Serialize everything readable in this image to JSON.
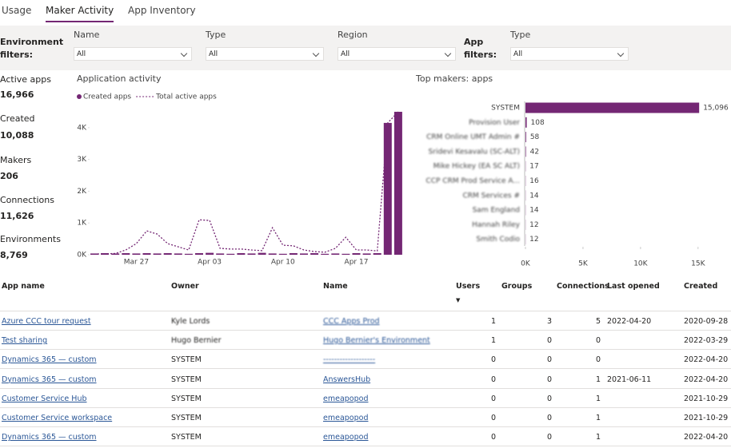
{
  "tabs": [
    "Usage",
    "Maker Activity",
    "App Inventory"
  ],
  "filters": {
    "environment_label": "Environment filters:",
    "app_label": "App filters:",
    "environment": [
      {
        "label": "Name",
        "value": "All"
      },
      {
        "label": "Type",
        "value": "All"
      },
      {
        "label": "Region",
        "value": "All"
      }
    ],
    "app": [
      {
        "label": "Type",
        "value": "All"
      }
    ]
  },
  "kpis": [
    {
      "label": "Active apps",
      "value": "16,966"
    },
    {
      "label": "Created",
      "value": "10,088"
    },
    {
      "label": "Makers",
      "value": "206"
    },
    {
      "label": "Connections",
      "value": "11,626"
    },
    {
      "label": "Environments",
      "value": "8,769"
    }
  ],
  "activity_chart": {
    "type": "bar",
    "title": "Application activity",
    "categories": [
      null,
      null,
      null,
      null,
      "Mar 27",
      null,
      null,
      null,
      null,
      null,
      null,
      "Apr 03",
      null,
      null,
      null,
      null,
      null,
      null,
      "Apr 10",
      null,
      null,
      null,
      null,
      null,
      null,
      "Apr 17",
      null,
      null,
      null,
      null
    ],
    "series": [
      {
        "name": "Created apps",
        "color": "#742774",
        "type": "bar",
        "values": [
          40,
          50,
          40,
          50,
          40,
          50,
          40,
          50,
          40,
          30,
          50,
          60,
          40,
          30,
          50,
          40,
          60,
          40,
          30,
          50,
          40,
          50,
          30,
          40,
          30,
          50,
          40,
          50,
          4150,
          4500
        ]
      },
      {
        "name": "Total active apps",
        "color": "#742774",
        "type": "line",
        "values": [
          20,
          30,
          40,
          150,
          350,
          750,
          650,
          350,
          250,
          150,
          1100,
          1080,
          200,
          180,
          180,
          150,
          130,
          850,
          300,
          280,
          150,
          100,
          80,
          200,
          550,
          150,
          150,
          120,
          4150,
          4500
        ]
      }
    ],
    "ylim": [
      0,
      4600
    ],
    "yticks": [
      {
        "value": 0,
        "label": "0K"
      },
      {
        "value": 1000,
        "label": "1K"
      },
      {
        "value": 2000,
        "label": "2K"
      },
      {
        "value": 3000,
        "label": "3K"
      },
      {
        "value": 4000,
        "label": "4K"
      }
    ]
  },
  "makers_chart": {
    "type": "bar",
    "orientation": "horizontal",
    "title": "Top makers: apps",
    "categories": [
      "SYSTEM",
      "Provision User",
      "CRM Online UMT Admin #",
      "Sridevi Kesavalu (SC-ALT)",
      "Mike Hickey (EA SC ALT)",
      "CCP CRM Prod Service A...",
      "CRM Services #",
      "Sam England",
      "Hannah Riley",
      "Smith Codio"
    ],
    "values": [
      15096,
      108,
      58,
      42,
      17,
      16,
      14,
      14,
      12,
      12
    ],
    "value_labels": [
      "15,096",
      "108",
      "58",
      "42",
      "17",
      "16",
      "14",
      "14",
      "12",
      "12"
    ],
    "color": "#742774",
    "xlim": [
      0,
      15500
    ],
    "xticks": [
      {
        "value": 0,
        "label": "0K"
      },
      {
        "value": 5000,
        "label": "5K"
      },
      {
        "value": 10000,
        "label": "10K"
      },
      {
        "value": 15000,
        "label": "15K"
      }
    ]
  },
  "table": {
    "columns": [
      "App name",
      "Owner",
      "Name",
      "Users",
      "Groups",
      "Connections",
      "Last opened",
      "Created"
    ],
    "rows": [
      [
        "Azure CCC tour request",
        "Kyle Lords",
        "CCC Apps Prod",
        1,
        3,
        5,
        "2022-04-20",
        "2020-09-28"
      ],
      [
        "Test sharing",
        "Hugo Bernier",
        "Hugo Bernier's Environment",
        1,
        0,
        0,
        null,
        "2022-03-29"
      ],
      [
        "Dynamics 365 — custom",
        "SYSTEM",
        "-------------------",
        0,
        0,
        0,
        null,
        "2022-04-20"
      ],
      [
        "Dynamics 365 — custom",
        "SYSTEM",
        "AnswersHub",
        0,
        0,
        1,
        "2021-06-11",
        "2022-04-20"
      ],
      [
        "Customer Service Hub",
        "SYSTEM",
        "emeapopod",
        0,
        0,
        1,
        null,
        "2021-10-29"
      ],
      [
        "Customer Service workspace",
        "SYSTEM",
        "emeapopod",
        0,
        0,
        1,
        null,
        "2021-10-29"
      ],
      [
        "Dynamics 365 — custom",
        "SYSTEM",
        "emeapopod",
        0,
        0,
        1,
        null,
        "2022-04-20"
      ]
    ]
  }
}
